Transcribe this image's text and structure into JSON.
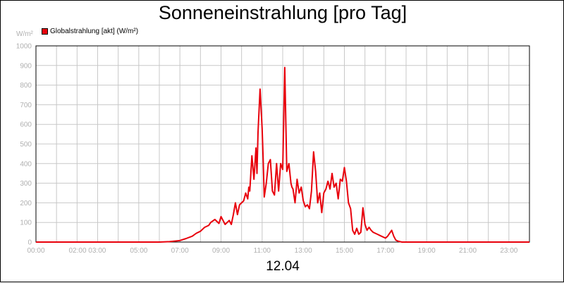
{
  "chart_data": {
    "type": "line",
    "title": "Sonneneinstrahlung [pro Tag]",
    "date_label": "12.04",
    "unit_label": "W/m²",
    "xlim": [
      0,
      24
    ],
    "ylim": [
      0,
      1000
    ],
    "y_ticks": [
      0,
      100,
      200,
      300,
      400,
      500,
      600,
      700,
      800,
      900,
      1000
    ],
    "x_ticks": [
      "00:00",
      "02:00 03:00",
      "05:00",
      "07:00",
      "09:00",
      "11:00",
      "13:00",
      "15:00",
      "17:00",
      "19:00",
      "21:00",
      "23:00"
    ],
    "grid": true,
    "legend_position": "top-left",
    "series": [
      {
        "name": "Globalstrahlung [akt] (W/m²)",
        "color": "#e8000b",
        "x": [
          0.0,
          6.0,
          6.5,
          7.0,
          7.3,
          7.6,
          7.8,
          8.0,
          8.2,
          8.4,
          8.5,
          8.7,
          8.9,
          9.0,
          9.2,
          9.4,
          9.5,
          9.6,
          9.7,
          9.8,
          9.9,
          10.0,
          10.1,
          10.2,
          10.3,
          10.35,
          10.4,
          10.5,
          10.6,
          10.7,
          10.75,
          10.8,
          10.9,
          11.0,
          11.05,
          11.1,
          11.2,
          11.3,
          11.4,
          11.5,
          11.6,
          11.7,
          11.8,
          11.9,
          12.0,
          12.1,
          12.2,
          12.3,
          12.4,
          12.45,
          12.5,
          12.6,
          12.7,
          12.8,
          12.9,
          13.0,
          13.1,
          13.2,
          13.3,
          13.4,
          13.5,
          13.6,
          13.7,
          13.8,
          13.9,
          14.0,
          14.1,
          14.2,
          14.3,
          14.4,
          14.5,
          14.6,
          14.7,
          14.8,
          14.9,
          15.0,
          15.1,
          15.2,
          15.3,
          15.4,
          15.5,
          15.6,
          15.7,
          15.8,
          15.9,
          16.0,
          16.1,
          16.2,
          16.3,
          16.4,
          16.6,
          16.8,
          17.0,
          17.1,
          17.2,
          17.3,
          17.4,
          17.5,
          17.6,
          17.7,
          17.8,
          17.9,
          18.0,
          18.2,
          18.4,
          18.6,
          18.8,
          19.0,
          19.3,
          19.8,
          20.0,
          24.0
        ],
        "y": [
          0,
          0,
          2,
          8,
          18,
          30,
          45,
          55,
          75,
          85,
          100,
          115,
          95,
          130,
          90,
          110,
          90,
          140,
          200,
          140,
          190,
          200,
          210,
          250,
          220,
          280,
          260,
          440,
          320,
          480,
          350,
          560,
          780,
          580,
          420,
          230,
          300,
          400,
          420,
          260,
          240,
          400,
          260,
          400,
          370,
          890,
          360,
          400,
          300,
          280,
          270,
          200,
          320,
          250,
          280,
          210,
          180,
          190,
          170,
          260,
          460,
          360,
          200,
          250,
          150,
          250,
          270,
          310,
          270,
          350,
          280,
          300,
          220,
          320,
          310,
          380,
          310,
          200,
          170,
          60,
          40,
          70,
          40,
          50,
          175,
          90,
          60,
          75,
          60,
          50,
          40,
          30,
          20,
          30,
          45,
          60,
          30,
          10,
          5,
          2,
          0,
          0,
          0,
          0,
          0,
          0,
          0,
          0,
          0,
          0,
          0,
          0
        ]
      }
    ]
  }
}
